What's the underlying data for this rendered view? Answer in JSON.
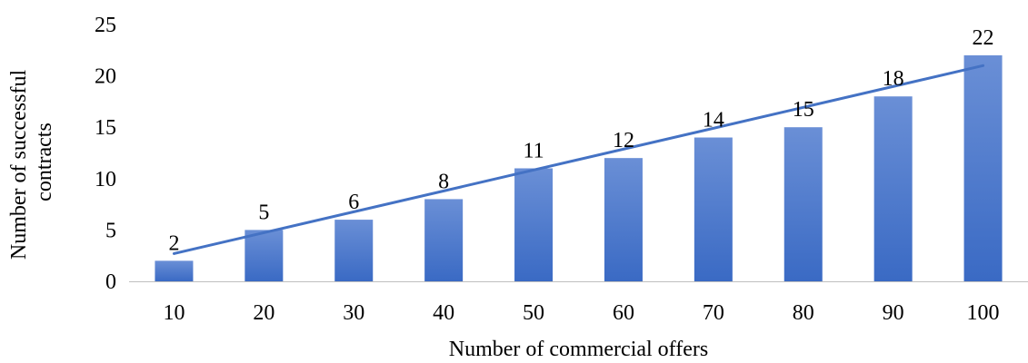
{
  "chart_data": {
    "type": "bar",
    "categories": [
      "10",
      "20",
      "30",
      "40",
      "50",
      "60",
      "70",
      "80",
      "90",
      "100"
    ],
    "values": [
      2,
      5,
      6,
      8,
      11,
      12,
      14,
      15,
      18,
      22
    ],
    "data_labels": [
      "2",
      "5",
      "6",
      "8",
      "11",
      "12",
      "14",
      "15",
      "18",
      "22"
    ],
    "title": "",
    "xlabel": "Number of commercial offers",
    "ylabel_lines": [
      "Number of successful",
      "contracts"
    ],
    "ylim": [
      0,
      25
    ],
    "yticks": [
      0,
      5,
      10,
      15,
      20,
      25
    ],
    "ytick_labels": [
      "0",
      "5",
      "10",
      "15",
      "20",
      "25"
    ],
    "grid": false,
    "legend": "none",
    "trendline": {
      "type": "linear",
      "start": 2.7,
      "end": 21.0
    },
    "colors": {
      "bar_top": "#6a8fd6",
      "bar_bottom": "#3a6ac4",
      "trendline": "#4472c4",
      "axis": "#bfbfbf"
    }
  }
}
